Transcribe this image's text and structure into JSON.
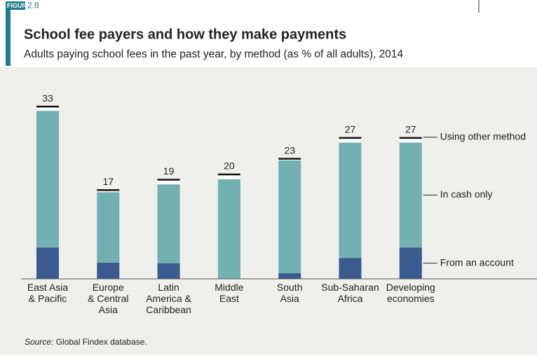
{
  "chart_data": {
    "type": "stacked_bar",
    "figure_tag": "FIGURE",
    "figure_number": "2.8",
    "title": "School fee payers and how they make payments",
    "subtitle": "Adults paying school fees in the past year, by method (as % of all adults), 2014",
    "categories": [
      "East Asia\n& Pacific",
      "Europe\n& Central\nAsia",
      "Latin\nAmerica &\nCaribbean",
      "Middle\nEast",
      "South\nAsia",
      "Sub-Saharan\nAfrica",
      "Developing\neconomies"
    ],
    "series": [
      {
        "name": "From an account",
        "color": "#3b5a8f",
        "values": [
          6.0,
          3.1,
          3.0,
          0,
          1.1,
          4.0,
          6.0
        ]
      },
      {
        "name": "In cash only",
        "color": "#72b0b2",
        "values": [
          26.2,
          13.5,
          15.1,
          19.1,
          21.6,
          22.1,
          20.1
        ]
      },
      {
        "name": "Using other method",
        "color": "#ffffff",
        "values": [
          0.8,
          0.4,
          0.9,
          0.9,
          0.3,
          0.9,
          0.9
        ]
      }
    ],
    "totals": [
      33,
      17,
      19,
      20,
      23,
      27,
      27
    ],
    "source_label": "Source:",
    "source": "Global Findex database."
  }
}
